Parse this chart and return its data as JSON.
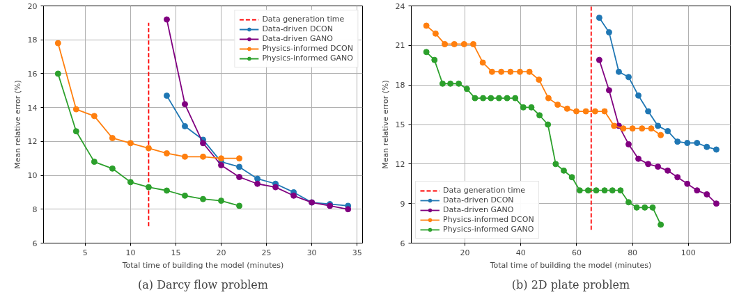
{
  "chart_data": [
    {
      "type": "line",
      "title": "(a) Darcy flow problem",
      "xlabel": "Total time of building the model (minutes)",
      "ylabel": "Mean relative error (%)",
      "xlim": [
        0.4,
        35.6
      ],
      "xticks": [
        5,
        10,
        15,
        20,
        25,
        30,
        35
      ],
      "ylim": [
        6,
        20
      ],
      "yticks": [
        6,
        8,
        10,
        12,
        14,
        16,
        18,
        20
      ],
      "grid": true,
      "legend": "top right",
      "marker": "circle",
      "series": [
        {
          "name": "Data generation time",
          "color": "#ff0000",
          "marker": "none",
          "line_style": "dashed",
          "x": [
            12,
            12
          ],
          "values": [
            7,
            19
          ]
        },
        {
          "name": "Data-driven DCON",
          "color": "#1f77b4",
          "x": [
            14,
            16,
            18,
            20,
            22,
            24,
            26,
            28,
            30,
            32,
            34
          ],
          "values": [
            14.7,
            12.9,
            12.1,
            10.8,
            10.5,
            9.8,
            9.5,
            9.0,
            8.4,
            8.3,
            8.2
          ]
        },
        {
          "name": "Data-driven GANO",
          "color": "#800080",
          "x": [
            14,
            16,
            18,
            20,
            22,
            24,
            26,
            28,
            30,
            32,
            34
          ],
          "values": [
            19.2,
            14.2,
            11.9,
            10.6,
            9.9,
            9.5,
            9.3,
            8.8,
            8.4,
            8.2,
            8.0
          ]
        },
        {
          "name": "Physics-informed DCON",
          "color": "#ff7f0e",
          "x": [
            2,
            4,
            6,
            8,
            10,
            12,
            14,
            16,
            18,
            20,
            22
          ],
          "values": [
            17.8,
            13.9,
            13.5,
            12.2,
            11.9,
            11.6,
            11.3,
            11.1,
            11.1,
            11.0,
            11.0
          ]
        },
        {
          "name": "Physics-informed GANO",
          "color": "#2ca02c",
          "x": [
            2,
            4,
            6,
            8,
            10,
            12,
            14,
            16,
            18,
            20,
            22
          ],
          "values": [
            16.0,
            12.6,
            10.8,
            10.4,
            9.6,
            9.3,
            9.1,
            8.8,
            8.6,
            8.5,
            8.2
          ]
        }
      ]
    },
    {
      "type": "line",
      "title": "(b) 2D plate problem",
      "xlabel": "Total time of building the model (minutes)",
      "ylabel": "Mean relative error (%)",
      "xlim": [
        0.8,
        115
      ],
      "xticks": [
        20,
        40,
        60,
        80,
        100
      ],
      "ylim": [
        6,
        24
      ],
      "yticks": [
        6,
        9,
        12,
        15,
        18,
        21,
        24
      ],
      "grid": true,
      "legend": "bottom left",
      "marker": "circle",
      "series": [
        {
          "name": "Data generation time",
          "color": "#ff0000",
          "marker": "none",
          "line_style": "dashed",
          "x": [
            65.2,
            65.2
          ],
          "values": [
            7,
            24
          ]
        },
        {
          "name": "Data-driven DCON",
          "color": "#1f77b4",
          "x": [
            68.1,
            71.6,
            75.1,
            78.6,
            82.1,
            85.6,
            89.1,
            92.6,
            96.1,
            99.6,
            103.1,
            106.6,
            110.0
          ],
          "values": [
            23.1,
            22.0,
            19.0,
            18.6,
            17.2,
            16.0,
            14.9,
            14.5,
            13.7,
            13.6,
            13.6,
            13.3,
            13.1
          ]
        },
        {
          "name": "Data-driven GANO",
          "color": "#800080",
          "x": [
            68.1,
            71.6,
            75.1,
            78.6,
            82.1,
            85.6,
            89.1,
            92.6,
            96.1,
            99.6,
            103.1,
            106.6,
            110.0
          ],
          "values": [
            19.9,
            17.6,
            14.9,
            13.5,
            12.4,
            12.0,
            11.8,
            11.5,
            11.0,
            10.5,
            10.0,
            9.7,
            9.0
          ]
        },
        {
          "name": "Physics-informed DCON",
          "color": "#ff7f0e",
          "x": [
            6.2,
            9.5,
            12.8,
            16.2,
            19.7,
            23.0,
            26.4,
            29.7,
            33.0,
            36.3,
            39.7,
            43.1,
            46.5,
            49.9,
            53.2,
            56.6,
            59.9,
            63.3,
            66.6,
            70.0,
            73.4,
            76.7,
            80.0,
            83.4,
            86.7,
            90.1
          ],
          "values": [
            22.5,
            21.9,
            21.1,
            21.1,
            21.1,
            21.1,
            19.7,
            19.0,
            19.0,
            19.0,
            19.0,
            19.0,
            18.4,
            17.0,
            16.5,
            16.2,
            16.0,
            16.0,
            16.0,
            16.0,
            14.9,
            14.7,
            14.7,
            14.7,
            14.7,
            14.2
          ]
        },
        {
          "name": "Physics-informed GANO",
          "color": "#2ca02c",
          "x": [
            6.2,
            9.1,
            12.0,
            14.8,
            17.8,
            20.7,
            23.6,
            26.5,
            29.3,
            32.2,
            35.1,
            38.0,
            40.9,
            43.8,
            46.7,
            49.7,
            52.5,
            55.4,
            58.3,
            61.1,
            64.1,
            67.0,
            70.0,
            72.8,
            75.7,
            78.6,
            81.5,
            84.4,
            87.2,
            90.1
          ],
          "values": [
            20.5,
            19.9,
            18.1,
            18.1,
            18.1,
            17.7,
            17.0,
            17.0,
            17.0,
            17.0,
            17.0,
            17.0,
            16.3,
            16.3,
            15.7,
            15.0,
            12.0,
            11.5,
            11.0,
            10.0,
            10.0,
            10.0,
            10.0,
            10.0,
            10.0,
            9.1,
            8.7,
            8.7,
            8.7,
            7.4
          ]
        }
      ]
    }
  ]
}
